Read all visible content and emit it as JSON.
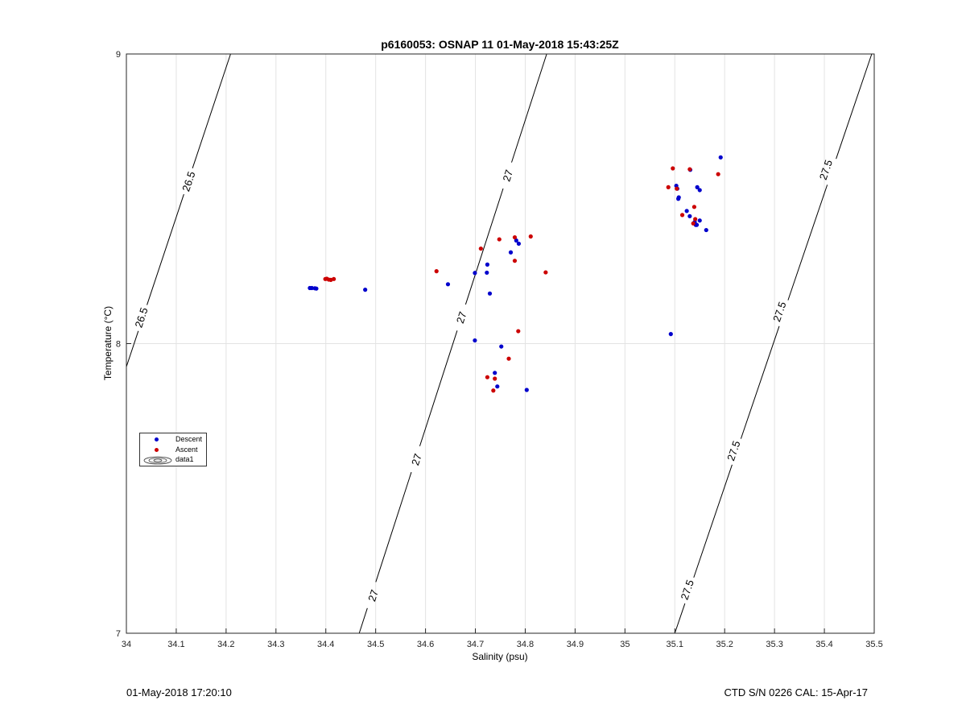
{
  "chart_data": {
    "type": "scatter",
    "title": "p6160053: OSNAP 11 01-May-2018 15:43:25Z",
    "xlabel": "Salinity (psu)",
    "ylabel": "Temperature (°C)",
    "xlim": [
      34,
      35.5
    ],
    "ylim": [
      7,
      9
    ],
    "x_ticks": [
      "34",
      "34.1",
      "34.2",
      "34.3",
      "34.4",
      "34.5",
      "34.6",
      "34.7",
      "34.8",
      "34.9",
      "35",
      "35.1",
      "35.2",
      "35.3",
      "35.4",
      "35.5"
    ],
    "y_ticks": [
      "7",
      "8",
      "9"
    ],
    "grid": true,
    "legend_position": "lower-left",
    "series": [
      {
        "name": "Descent",
        "color": "#0000cc",
        "points": [
          [
            34.368,
            8.192
          ],
          [
            34.372,
            8.192
          ],
          [
            34.378,
            8.191
          ],
          [
            34.381,
            8.19
          ],
          [
            34.479,
            8.186
          ],
          [
            34.645,
            8.205
          ],
          [
            34.699,
            8.244
          ],
          [
            34.723,
            8.245
          ],
          [
            34.724,
            8.273
          ],
          [
            34.729,
            8.173
          ],
          [
            34.699,
            8.011
          ],
          [
            34.752,
            7.99
          ],
          [
            34.739,
            7.899
          ],
          [
            34.744,
            7.852
          ],
          [
            34.803,
            7.84
          ],
          [
            34.771,
            8.315
          ],
          [
            34.782,
            8.356
          ],
          [
            34.787,
            8.345
          ],
          [
            35.092,
            8.033
          ],
          [
            35.103,
            8.545
          ],
          [
            35.105,
            8.535
          ],
          [
            35.107,
            8.5
          ],
          [
            35.108,
            8.505
          ],
          [
            35.124,
            8.458
          ],
          [
            35.13,
            8.44
          ],
          [
            35.131,
            8.6
          ],
          [
            35.14,
            8.42
          ],
          [
            35.142,
            8.41
          ],
          [
            35.144,
            8.41
          ],
          [
            35.145,
            8.54
          ],
          [
            35.15,
            8.425
          ],
          [
            35.15,
            8.53
          ],
          [
            35.163,
            8.392
          ],
          [
            35.192,
            8.643
          ]
        ]
      },
      {
        "name": "Ascent",
        "color": "#cc0000",
        "points": [
          [
            34.399,
            8.223
          ],
          [
            34.402,
            8.224
          ],
          [
            34.406,
            8.221
          ],
          [
            34.41,
            8.22
          ],
          [
            34.416,
            8.223
          ],
          [
            34.622,
            8.25
          ],
          [
            34.711,
            8.328
          ],
          [
            34.748,
            8.36
          ],
          [
            34.779,
            8.367
          ],
          [
            34.811,
            8.37
          ],
          [
            34.779,
            8.286
          ],
          [
            34.841,
            8.246
          ],
          [
            34.786,
            8.043
          ],
          [
            34.767,
            7.948
          ],
          [
            34.724,
            7.884
          ],
          [
            34.739,
            7.879
          ],
          [
            34.736,
            7.838
          ],
          [
            35.087,
            8.54
          ],
          [
            35.096,
            8.605
          ],
          [
            35.104,
            8.535
          ],
          [
            35.115,
            8.444
          ],
          [
            35.13,
            8.602
          ],
          [
            35.137,
            8.415
          ],
          [
            35.139,
            8.472
          ],
          [
            35.141,
            8.43
          ],
          [
            35.187,
            8.585
          ]
        ]
      },
      {
        "name": "data1",
        "type": "contour",
        "levels": [
          {
            "label": "26.5",
            "line": [
              [
                34,
                7.92
              ],
              [
                34.209,
                9
              ]
            ],
            "label_points": [
              [
                34.03,
                8.09
              ],
              [
                34.125,
                8.56
              ]
            ]
          },
          {
            "label": "27",
            "line": [
              [
                34.467,
                7
              ],
              [
                34.843,
                9
              ]
            ],
            "label_points": [
              [
                34.495,
                7.13
              ],
              [
                34.582,
                7.6
              ],
              [
                34.672,
                8.09
              ],
              [
                34.765,
                8.58
              ]
            ]
          },
          {
            "label": "27.5",
            "line": [
              [
                35.1,
                7
              ],
              [
                35.495,
                9
              ]
            ],
            "label_points": [
              [
                35.125,
                7.15
              ],
              [
                35.218,
                7.63
              ],
              [
                35.31,
                8.11
              ],
              [
                35.403,
                8.6
              ]
            ]
          }
        ]
      }
    ]
  },
  "legend": {
    "descent_label": "Descent",
    "ascent_label": "Ascent",
    "contour_label": "data1"
  },
  "footer": {
    "left": "01-May-2018 17:20:10",
    "right": "CTD S/N 0226  CAL: 15-Apr-17"
  }
}
